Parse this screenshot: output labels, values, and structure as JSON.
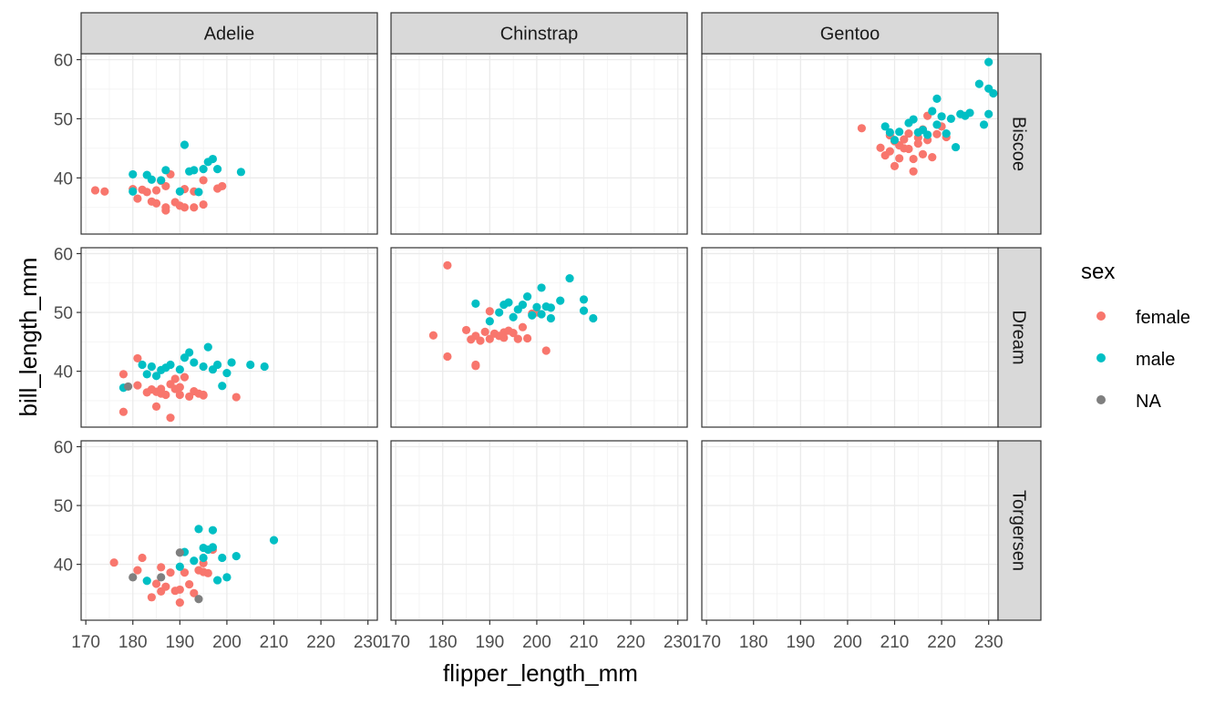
{
  "chart_data": {
    "type": "scatter",
    "xlabel": "flipper_length_mm",
    "ylabel": "bill_length_mm",
    "xlim": [
      169,
      232
    ],
    "ylim": [
      30.5,
      61
    ],
    "x_ticks": [
      170,
      180,
      190,
      200,
      210,
      220,
      230
    ],
    "y_ticks": [
      40,
      50,
      60
    ],
    "facet_cols": [
      "Adelie",
      "Chinstrap",
      "Gentoo"
    ],
    "facet_rows": [
      "Biscoe",
      "Dream",
      "Torgersen"
    ],
    "grid": true,
    "legend": {
      "title": "sex",
      "position": "right",
      "entries": [
        {
          "name": "female",
          "color": "#F8766D"
        },
        {
          "name": "male",
          "color": "#00BFC4"
        },
        {
          "name": "NA",
          "color": "#7F7F7F"
        }
      ]
    },
    "series": [
      {
        "name": "female",
        "color": "#F8766D",
        "panels": [
          {
            "col": "Adelie",
            "row": "Biscoe",
            "points": [
              [
                172,
                37.9
              ],
              [
                174,
                37.7
              ],
              [
                180,
                38.1
              ],
              [
                181,
                36.5
              ],
              [
                182,
                38.0
              ],
              [
                183,
                37.6
              ],
              [
                184,
                36.0
              ],
              [
                185,
                35.7
              ],
              [
                185,
                37.9
              ],
              [
                186,
                39.5
              ],
              [
                187,
                34.5
              ],
              [
                187,
                35.0
              ],
              [
                187,
                38.6
              ],
              [
                188,
                40.6
              ],
              [
                189,
                35.9
              ],
              [
                190,
                35.3
              ],
              [
                191,
                35.0
              ],
              [
                191,
                38.1
              ],
              [
                193,
                37.7
              ],
              [
                193,
                35.0
              ],
              [
                195,
                35.5
              ],
              [
                195,
                39.6
              ],
              [
                198,
                38.2
              ],
              [
                199,
                38.6
              ]
            ]
          },
          {
            "col": "Adelie",
            "row": "Dream",
            "points": [
              [
                178,
                39.5
              ],
              [
                178,
                33.1
              ],
              [
                181,
                42.2
              ],
              [
                181,
                37.6
              ],
              [
                183,
                36.4
              ],
              [
                184,
                36.9
              ],
              [
                185,
                34.0
              ],
              [
                185,
                36.5
              ],
              [
                186,
                37.0
              ],
              [
                186,
                36.2
              ],
              [
                187,
                36.0
              ],
              [
                188,
                37.8
              ],
              [
                188,
                32.1
              ],
              [
                189,
                37.0
              ],
              [
                189,
                38.7
              ],
              [
                190,
                36.0
              ],
              [
                190,
                37.3
              ],
              [
                191,
                39.0
              ],
              [
                192,
                35.7
              ],
              [
                193,
                36.6
              ],
              [
                194,
                36.2
              ],
              [
                195,
                36.0
              ],
              [
                195,
                35.9
              ],
              [
                202,
                35.6
              ]
            ]
          },
          {
            "col": "Adelie",
            "row": "Torgersen",
            "points": [
              [
                176,
                40.3
              ],
              [
                181,
                39.0
              ],
              [
                182,
                41.1
              ],
              [
                184,
                34.4
              ],
              [
                185,
                36.7
              ],
              [
                186,
                35.4
              ],
              [
                186,
                39.5
              ],
              [
                187,
                36.2
              ],
              [
                188,
                38.6
              ],
              [
                189,
                35.5
              ],
              [
                190,
                33.5
              ],
              [
                190,
                35.7
              ],
              [
                191,
                38.6
              ],
              [
                192,
                36.6
              ],
              [
                193,
                35.1
              ],
              [
                194,
                39.0
              ],
              [
                195,
                40.2
              ],
              [
                195,
                38.7
              ],
              [
                196,
                38.5
              ],
              [
                197,
                42.5
              ]
            ]
          },
          {
            "col": "Chinstrap",
            "row": "Dream",
            "points": [
              [
                178,
                46.1
              ],
              [
                181,
                42.5
              ],
              [
                181,
                58.0
              ],
              [
                185,
                47.0
              ],
              [
                186,
                45.4
              ],
              [
                187,
                41.1
              ],
              [
                187,
                40.9
              ],
              [
                187,
                46.0
              ],
              [
                188,
                45.2
              ],
              [
                189,
                46.7
              ],
              [
                190,
                45.5
              ],
              [
                190,
                50.2
              ],
              [
                191,
                46.4
              ],
              [
                192,
                46.0
              ],
              [
                193,
                46.6
              ],
              [
                193,
                45.7
              ],
              [
                194,
                46.9
              ],
              [
                195,
                46.5
              ],
              [
                196,
                45.5
              ],
              [
                197,
                47.5
              ],
              [
                198,
                45.6
              ],
              [
                199,
                49.8
              ],
              [
                200,
                50.0
              ],
              [
                202,
                43.5
              ]
            ]
          },
          {
            "col": "Gentoo",
            "row": "Biscoe",
            "points": [
              [
                203,
                48.4
              ],
              [
                207,
                45.1
              ],
              [
                208,
                43.8
              ],
              [
                209,
                47.2
              ],
              [
                209,
                44.5
              ],
              [
                210,
                42.0
              ],
              [
                210,
                46.2
              ],
              [
                211,
                45.5
              ],
              [
                211,
                43.3
              ],
              [
                212,
                46.5
              ],
              [
                212,
                45.0
              ],
              [
                213,
                47.5
              ],
              [
                213,
                44.9
              ],
              [
                214,
                41.1
              ],
              [
                214,
                43.2
              ],
              [
                215,
                46.8
              ],
              [
                215,
                45.8
              ],
              [
                216,
                48.2
              ],
              [
                216,
                44.0
              ],
              [
                217,
                50.5
              ],
              [
                217,
                46.4
              ],
              [
                218,
                43.5
              ],
              [
                219,
                47.4
              ],
              [
                220,
                48.7
              ],
              [
                221,
                46.9
              ]
            ]
          }
        ]
      },
      {
        "name": "male",
        "color": "#00BFC4",
        "panels": [
          {
            "col": "Adelie",
            "row": "Biscoe",
            "points": [
              [
                180,
                40.6
              ],
              [
                180,
                37.7
              ],
              [
                183,
                40.5
              ],
              [
                184,
                39.7
              ],
              [
                186,
                39.6
              ],
              [
                187,
                41.3
              ],
              [
                190,
                37.7
              ],
              [
                191,
                45.6
              ],
              [
                192,
                41.1
              ],
              [
                193,
                41.3
              ],
              [
                194,
                37.6
              ],
              [
                195,
                41.5
              ],
              [
                196,
                42.7
              ],
              [
                197,
                43.2
              ],
              [
                198,
                41.5
              ],
              [
                203,
                41.0
              ]
            ]
          },
          {
            "col": "Adelie",
            "row": "Dream",
            "points": [
              [
                178,
                37.2
              ],
              [
                182,
                41.1
              ],
              [
                183,
                39.5
              ],
              [
                184,
                40.8
              ],
              [
                185,
                39.2
              ],
              [
                186,
                40.2
              ],
              [
                187,
                40.6
              ],
              [
                188,
                41.1
              ],
              [
                190,
                40.3
              ],
              [
                191,
                42.3
              ],
              [
                192,
                43.2
              ],
              [
                193,
                41.5
              ],
              [
                195,
                40.8
              ],
              [
                196,
                44.1
              ],
              [
                197,
                40.3
              ],
              [
                198,
                41.1
              ],
              [
                199,
                37.5
              ],
              [
                200,
                39.7
              ],
              [
                201,
                41.5
              ],
              [
                205,
                41.1
              ],
              [
                208,
                40.8
              ]
            ]
          },
          {
            "col": "Adelie",
            "row": "Torgersen",
            "points": [
              [
                183,
                37.2
              ],
              [
                190,
                39.6
              ],
              [
                191,
                42.1
              ],
              [
                193,
                40.6
              ],
              [
                194,
                46.0
              ],
              [
                195,
                41.1
              ],
              [
                195,
                42.8
              ],
              [
                196,
                42.5
              ],
              [
                197,
                45.8
              ],
              [
                197,
                42.9
              ],
              [
                198,
                37.3
              ],
              [
                199,
                41.1
              ],
              [
                200,
                37.8
              ],
              [
                202,
                41.4
              ],
              [
                210,
                44.1
              ]
            ]
          },
          {
            "col": "Chinstrap",
            "row": "Dream",
            "points": [
              [
                187,
                51.5
              ],
              [
                190,
                48.5
              ],
              [
                192,
                50.0
              ],
              [
                193,
                51.3
              ],
              [
                194,
                51.7
              ],
              [
                195,
                49.2
              ],
              [
                196,
                50.5
              ],
              [
                197,
                51.3
              ],
              [
                198,
                52.7
              ],
              [
                199,
                49.5
              ],
              [
                200,
                50.9
              ],
              [
                201,
                54.2
              ],
              [
                201,
                49.7
              ],
              [
                202,
                51.0
              ],
              [
                203,
                50.8
              ],
              [
                203,
                49.0
              ],
              [
                205,
                52.0
              ],
              [
                207,
                55.8
              ],
              [
                210,
                52.2
              ],
              [
                210,
                50.3
              ],
              [
                212,
                49.0
              ]
            ]
          },
          {
            "col": "Gentoo",
            "row": "Biscoe",
            "points": [
              [
                208,
                48.7
              ],
              [
                209,
                47.7
              ],
              [
                210,
                46.4
              ],
              [
                211,
                47.8
              ],
              [
                213,
                49.3
              ],
              [
                214,
                49.9
              ],
              [
                215,
                47.7
              ],
              [
                216,
                48.1
              ],
              [
                217,
                47.3
              ],
              [
                218,
                51.3
              ],
              [
                219,
                53.4
              ],
              [
                219,
                49.0
              ],
              [
                220,
                50.4
              ],
              [
                221,
                47.5
              ],
              [
                222,
                50.0
              ],
              [
                223,
                45.2
              ],
              [
                224,
                50.8
              ],
              [
                225,
                50.5
              ],
              [
                226,
                51.0
              ],
              [
                228,
                55.9
              ],
              [
                229,
                49.0
              ],
              [
                230,
                59.6
              ],
              [
                230,
                55.1
              ],
              [
                230,
                50.8
              ],
              [
                231,
                54.3
              ]
            ]
          }
        ]
      },
      {
        "name": "NA",
        "color": "#7F7F7F",
        "panels": [
          {
            "col": "Adelie",
            "row": "Dream",
            "points": [
              [
                179,
                37.4
              ]
            ]
          },
          {
            "col": "Adelie",
            "row": "Torgersen",
            "points": [
              [
                180,
                37.8
              ],
              [
                186,
                37.8
              ],
              [
                190,
                42.0
              ],
              [
                194,
                34.1
              ]
            ]
          }
        ]
      }
    ]
  }
}
